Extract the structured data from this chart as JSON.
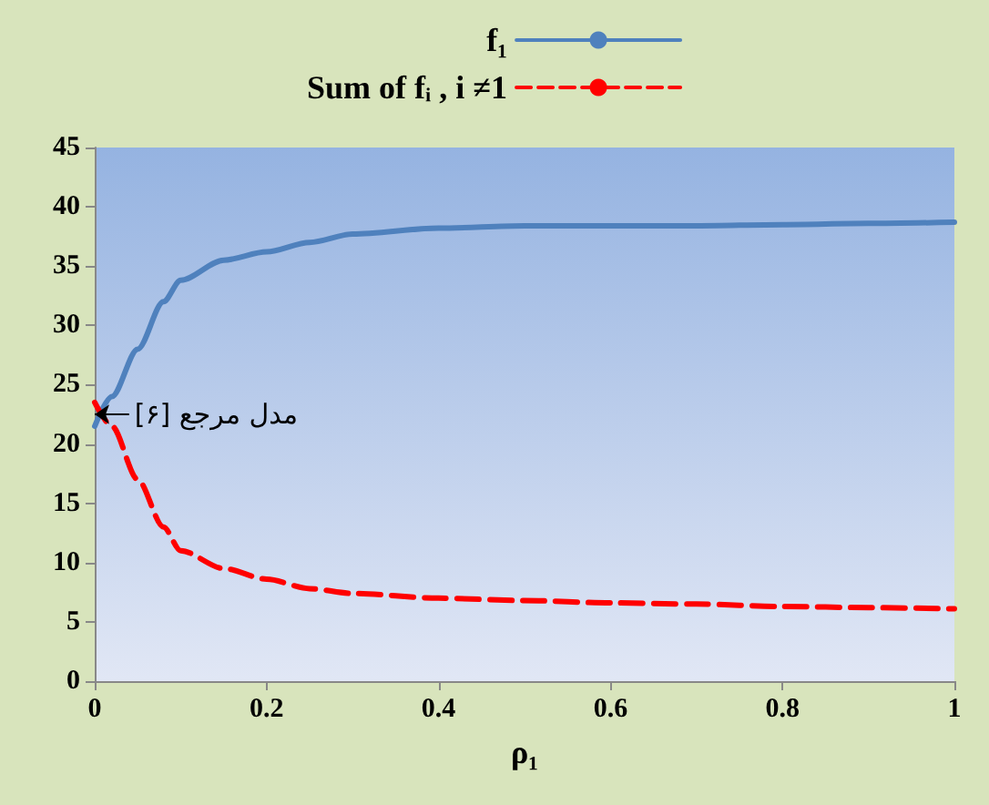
{
  "chart_data": {
    "type": "line",
    "xlabel": "ρ₁",
    "x": [
      0,
      0.02,
      0.05,
      0.08,
      0.1,
      0.15,
      0.2,
      0.25,
      0.3,
      0.4,
      0.5,
      0.6,
      0.7,
      0.8,
      0.9,
      1
    ],
    "series": [
      {
        "name": "f₁",
        "color": "#4f81bd",
        "line_style": "solid",
        "values": [
          21.5,
          24,
          28,
          32,
          33.8,
          35.5,
          36.2,
          37,
          37.7,
          38.2,
          38.4,
          38.4,
          38.4,
          38.5,
          38.6,
          38.7
        ]
      },
      {
        "name": "Sum of fᵢ , i ≠1",
        "color": "#ff0000",
        "line_style": "dashed",
        "values": [
          23.5,
          21.5,
          17,
          13,
          11,
          9.5,
          8.6,
          7.8,
          7.4,
          7,
          6.8,
          6.6,
          6.5,
          6.3,
          6.2,
          6.1
        ]
      }
    ],
    "annotations": [
      {
        "text": "مدل مرجع [۶]",
        "x": 0,
        "y": 22.5
      }
    ],
    "xlim": [
      0,
      1
    ],
    "xticks": [
      0,
      0.2,
      0.4,
      0.6,
      0.8,
      1
    ],
    "ylim": [
      0,
      45
    ],
    "yticks": [
      0,
      5,
      10,
      15,
      20,
      25,
      30,
      35,
      40,
      45
    ],
    "grid": false,
    "legend": "top",
    "marker": "none"
  }
}
